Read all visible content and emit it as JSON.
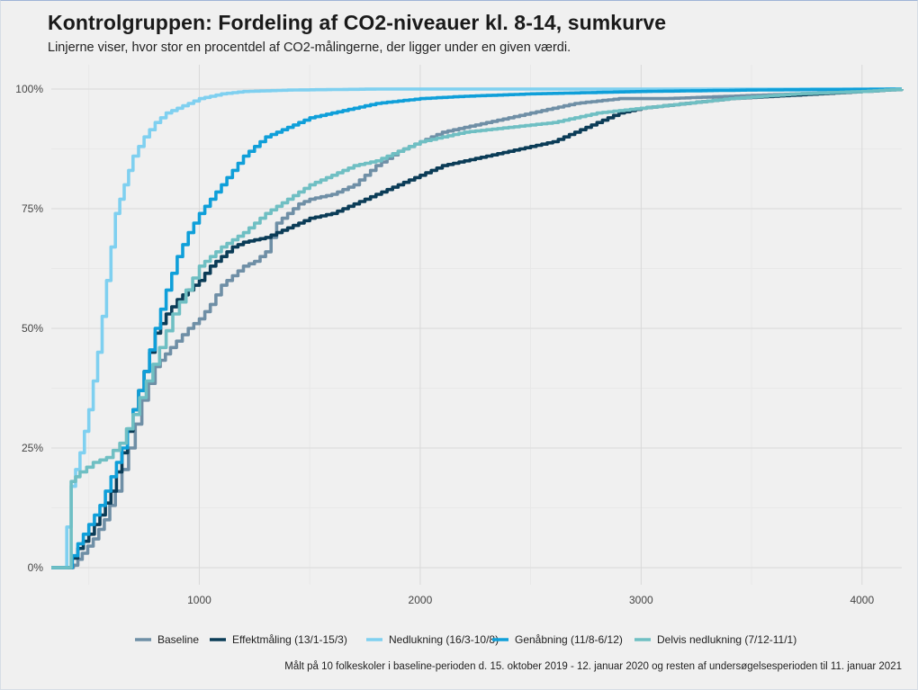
{
  "title": "Kontrolgruppen: Fordeling af CO2-niveauer kl. 8-14, sumkurve",
  "subtitle": "Linjerne viser, hvor stor en procentdel af CO2-målingerne, der ligger under en given værdi.",
  "caption": "Målt på 10 folkeskoler i baseline-perioden d. 15. oktober 2019 - 12. januar 2020 og resten af undersøgelsesperioden til 11. januar 2021",
  "chart_data": {
    "type": "line",
    "title": "Kontrolgruppen: Fordeling af CO2-niveauer kl. 8-14, sumkurve",
    "xlabel": "",
    "ylabel": "",
    "xlim": [
      330,
      4180
    ],
    "ylim": [
      0,
      1
    ],
    "x_ticks": [
      1000,
      2000,
      3000,
      4000
    ],
    "x_tick_labels": [
      "1000",
      "2000",
      "3000",
      "4000"
    ],
    "y_ticks": [
      0,
      0.25,
      0.5,
      0.75,
      1.0
    ],
    "y_tick_labels": [
      "0%",
      "25%",
      "50%",
      "75%",
      "100%"
    ],
    "grid": true,
    "legend_position": "bottom",
    "series": [
      {
        "name": "Baseline",
        "color": "#6f8fa6",
        "points": [
          [
            330,
            0
          ],
          [
            400,
            0
          ],
          [
            430,
            0.005
          ],
          [
            470,
            0.03
          ],
          [
            520,
            0.06
          ],
          [
            570,
            0.1
          ],
          [
            620,
            0.16
          ],
          [
            680,
            0.25
          ],
          [
            740,
            0.35
          ],
          [
            800,
            0.42
          ],
          [
            870,
            0.46
          ],
          [
            950,
            0.5
          ],
          [
            1000,
            0.52
          ],
          [
            1050,
            0.55
          ],
          [
            1100,
            0.59
          ],
          [
            1150,
            0.61
          ],
          [
            1200,
            0.63
          ],
          [
            1250,
            0.64
          ],
          [
            1300,
            0.66
          ],
          [
            1350,
            0.72
          ],
          [
            1400,
            0.74
          ],
          [
            1450,
            0.76
          ],
          [
            1500,
            0.77
          ],
          [
            1600,
            0.78
          ],
          [
            1700,
            0.8
          ],
          [
            1800,
            0.84
          ],
          [
            1900,
            0.87
          ],
          [
            2000,
            0.89
          ],
          [
            2100,
            0.91
          ],
          [
            2200,
            0.92
          ],
          [
            2300,
            0.93
          ],
          [
            2400,
            0.94
          ],
          [
            2500,
            0.95
          ],
          [
            2700,
            0.97
          ],
          [
            2900,
            0.98
          ],
          [
            3100,
            0.98
          ],
          [
            3400,
            0.985
          ],
          [
            3700,
            0.99
          ],
          [
            4000,
            0.995
          ],
          [
            4180,
            1
          ]
        ]
      },
      {
        "name": "Effektmåling (13/1-15/3)",
        "color": "#0b3c57",
        "points": [
          [
            330,
            0
          ],
          [
            400,
            0
          ],
          [
            450,
            0.04
          ],
          [
            500,
            0.07
          ],
          [
            550,
            0.11
          ],
          [
            600,
            0.16
          ],
          [
            650,
            0.24
          ],
          [
            700,
            0.33
          ],
          [
            750,
            0.41
          ],
          [
            800,
            0.49
          ],
          [
            850,
            0.53
          ],
          [
            900,
            0.56
          ],
          [
            950,
            0.58
          ],
          [
            1000,
            0.6
          ],
          [
            1050,
            0.63
          ],
          [
            1100,
            0.65
          ],
          [
            1150,
            0.67
          ],
          [
            1200,
            0.68
          ],
          [
            1300,
            0.69
          ],
          [
            1400,
            0.71
          ],
          [
            1500,
            0.73
          ],
          [
            1600,
            0.74
          ],
          [
            1700,
            0.76
          ],
          [
            1800,
            0.78
          ],
          [
            1900,
            0.8
          ],
          [
            2000,
            0.82
          ],
          [
            2100,
            0.84
          ],
          [
            2200,
            0.85
          ],
          [
            2300,
            0.86
          ],
          [
            2400,
            0.87
          ],
          [
            2500,
            0.88
          ],
          [
            2600,
            0.89
          ],
          [
            2700,
            0.91
          ],
          [
            2800,
            0.93
          ],
          [
            2900,
            0.95
          ],
          [
            3000,
            0.96
          ],
          [
            3200,
            0.97
          ],
          [
            3400,
            0.98
          ],
          [
            3600,
            0.985
          ],
          [
            3800,
            0.99
          ],
          [
            4000,
            0.995
          ],
          [
            4180,
            1
          ]
        ]
      },
      {
        "name": "Nedlukning (16/3-10/8)",
        "color": "#7fd0f0",
        "points": [
          [
            330,
            0
          ],
          [
            380,
            0
          ],
          [
            420,
            0.17
          ],
          [
            460,
            0.24
          ],
          [
            500,
            0.33
          ],
          [
            540,
            0.45
          ],
          [
            580,
            0.6
          ],
          [
            620,
            0.74
          ],
          [
            660,
            0.8
          ],
          [
            700,
            0.86
          ],
          [
            750,
            0.9
          ],
          [
            800,
            0.93
          ],
          [
            850,
            0.95
          ],
          [
            900,
            0.96
          ],
          [
            950,
            0.97
          ],
          [
            1000,
            0.98
          ],
          [
            1100,
            0.99
          ],
          [
            1200,
            0.995
          ],
          [
            1400,
            0.998
          ],
          [
            1800,
            1
          ],
          [
            4180,
            1
          ]
        ]
      },
      {
        "name": "Genåbning (11/8-6/12)",
        "color": "#0f9fd9",
        "points": [
          [
            330,
            0
          ],
          [
            400,
            0
          ],
          [
            450,
            0.05
          ],
          [
            500,
            0.09
          ],
          [
            550,
            0.13
          ],
          [
            600,
            0.19
          ],
          [
            650,
            0.25
          ],
          [
            700,
            0.33
          ],
          [
            750,
            0.41
          ],
          [
            800,
            0.5
          ],
          [
            850,
            0.58
          ],
          [
            900,
            0.65
          ],
          [
            950,
            0.7
          ],
          [
            1000,
            0.74
          ],
          [
            1050,
            0.77
          ],
          [
            1100,
            0.8
          ],
          [
            1150,
            0.83
          ],
          [
            1200,
            0.86
          ],
          [
            1250,
            0.88
          ],
          [
            1300,
            0.9
          ],
          [
            1400,
            0.92
          ],
          [
            1500,
            0.94
          ],
          [
            1600,
            0.95
          ],
          [
            1700,
            0.96
          ],
          [
            1800,
            0.97
          ],
          [
            2000,
            0.98
          ],
          [
            2200,
            0.985
          ],
          [
            2500,
            0.99
          ],
          [
            3000,
            0.995
          ],
          [
            3500,
            0.998
          ],
          [
            4180,
            1
          ]
        ]
      },
      {
        "name": "Delvis nedlukning (7/12-11/1)",
        "color": "#6fbfc3",
        "points": [
          [
            330,
            0
          ],
          [
            400,
            0
          ],
          [
            420,
            0.18
          ],
          [
            460,
            0.2
          ],
          [
            520,
            0.22
          ],
          [
            580,
            0.23
          ],
          [
            640,
            0.26
          ],
          [
            700,
            0.32
          ],
          [
            760,
            0.39
          ],
          [
            820,
            0.46
          ],
          [
            880,
            0.53
          ],
          [
            940,
            0.58
          ],
          [
            1000,
            0.63
          ],
          [
            1050,
            0.65
          ],
          [
            1100,
            0.67
          ],
          [
            1200,
            0.7
          ],
          [
            1300,
            0.74
          ],
          [
            1400,
            0.77
          ],
          [
            1500,
            0.8
          ],
          [
            1600,
            0.82
          ],
          [
            1700,
            0.84
          ],
          [
            1800,
            0.85
          ],
          [
            1900,
            0.87
          ],
          [
            2000,
            0.89
          ],
          [
            2100,
            0.9
          ],
          [
            2200,
            0.91
          ],
          [
            2400,
            0.92
          ],
          [
            2600,
            0.93
          ],
          [
            2800,
            0.95
          ],
          [
            3000,
            0.96
          ],
          [
            3200,
            0.97
          ],
          [
            3400,
            0.98
          ],
          [
            3700,
            0.99
          ],
          [
            4000,
            0.995
          ],
          [
            4180,
            1
          ]
        ]
      }
    ]
  }
}
